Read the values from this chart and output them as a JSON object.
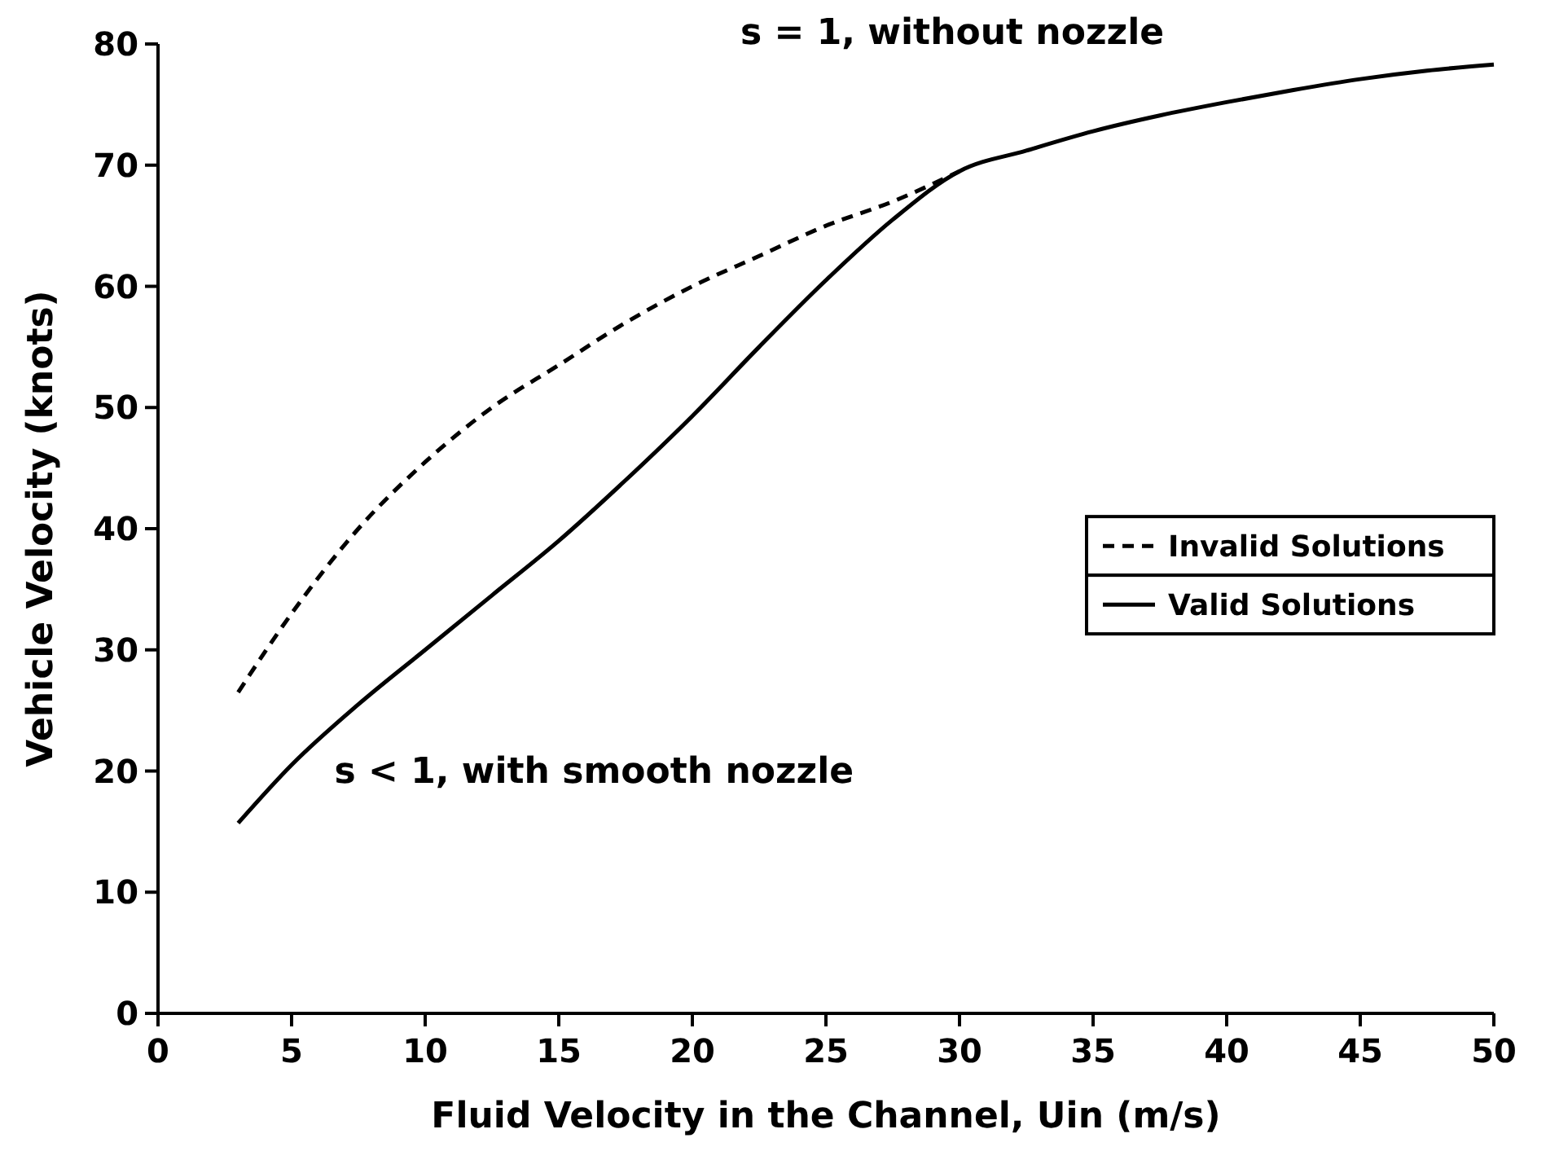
{
  "chart_data": {
    "type": "line",
    "xlabel": "Fluid Velocity in the Channel, Uin (m/s)",
    "ylabel": "Vehicle Velocity (knots)",
    "xlim": [
      0,
      50
    ],
    "xticks": [
      0,
      5,
      10,
      15,
      20,
      25,
      30,
      35,
      40,
      45,
      50
    ],
    "ylim": [
      0,
      80
    ],
    "yticks": [
      0,
      10,
      20,
      30,
      40,
      50,
      60,
      70,
      80
    ],
    "grid": false,
    "legend": "right",
    "marker": "none",
    "series": [
      {
        "name": "Invalid Solutions",
        "color": "#000000",
        "line_style": "dashed",
        "x": [
          3,
          5,
          7.5,
          10,
          12.5,
          15,
          17.5,
          20,
          22.5,
          25,
          27.5,
          30
        ],
        "values": [
          26.5,
          33,
          40,
          45.5,
          50,
          53.5,
          57,
          60,
          62.5,
          65,
          67,
          69.5
        ]
      },
      {
        "name": "Valid Solutions",
        "color": "#000000",
        "line_style": "solid",
        "x": [
          3,
          5,
          7.5,
          10,
          12.5,
          15,
          17.5,
          20,
          22.5,
          25,
          27.5,
          30,
          32.5,
          35,
          37.5,
          40,
          42.5,
          45,
          47.5,
          50
        ],
        "values": [
          15.7,
          20.5,
          25.5,
          30,
          34.5,
          39,
          44,
          49.3,
          55,
          60.5,
          65.5,
          69.5,
          71.2,
          72.8,
          74.1,
          75.2,
          76.2,
          77.1,
          77.8,
          78.3
        ]
      }
    ],
    "annotations": [
      "s = 1, without nozzle",
      "s < 1, with smooth nozzle"
    ]
  }
}
